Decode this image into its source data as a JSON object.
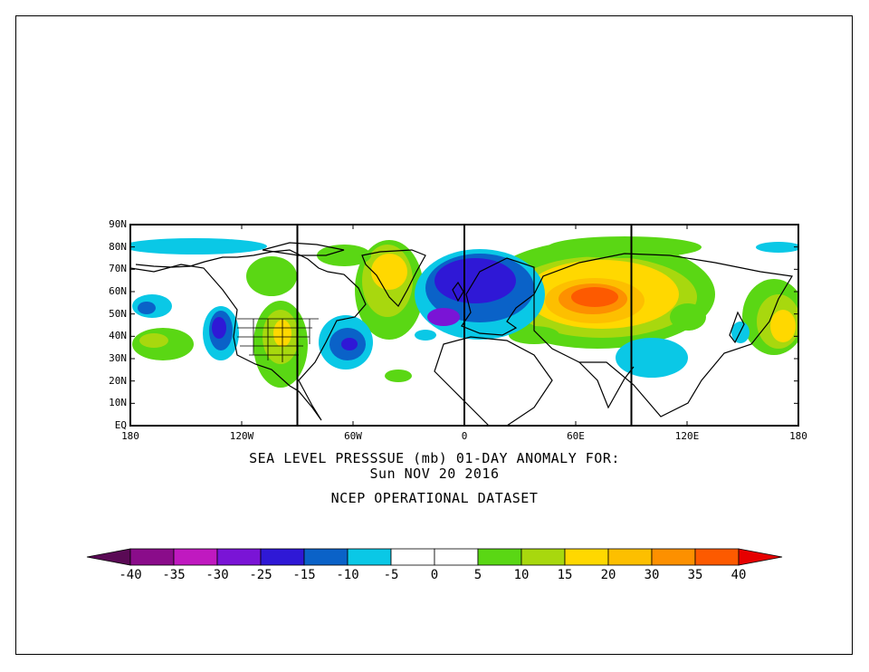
{
  "title": {
    "line1": "SEA LEVEL PRESSSUE (mb)   01-DAY ANOMALY FOR:",
    "line2": "Sun NOV 20 2016",
    "line3": "NCEP OPERATIONAL DATASET"
  },
  "map": {
    "projection": "cylindrical equidistant",
    "lon_range": [
      -180,
      180
    ],
    "lat_range": [
      0,
      90
    ],
    "lon_ticks": [
      "180",
      "120W",
      "60W",
      "0",
      "60E",
      "120E",
      "180"
    ],
    "lat_ticks": [
      "90N",
      "80N",
      "70N",
      "60N",
      "50N",
      "40N",
      "30N",
      "20N",
      "10N",
      "EQ"
    ],
    "meridian_lines_deg": [
      -90,
      0,
      90
    ]
  },
  "colorbar": {
    "labels": [
      "-40",
      "-35",
      "-30",
      "-25",
      "-15",
      "-10",
      "-5",
      "0",
      "5",
      "10",
      "15",
      "20",
      "30",
      "35",
      "40"
    ],
    "colors": [
      "#5a0a55",
      "#8a0c8a",
      "#c019c0",
      "#7a14d6",
      "#2f18d6",
      "#0a62c8",
      "#0ac8e6",
      "#ffffff",
      "#ffffff",
      "#5ad714",
      "#a8d80e",
      "#ffd800",
      "#fdbf00",
      "#fd9000",
      "#fd5a00",
      "#e60000"
    ]
  },
  "chart_data": {
    "type": "heatmap",
    "variable": "SEA LEVEL PRESSSUE (mb) 01-DAY ANOMALY",
    "date": "Sun NOV 20 2016",
    "anomaly_centers": [
      {
        "lon": 70,
        "lat": 57,
        "value": 35
      },
      {
        "lon": 75,
        "lat": 58,
        "value": 30
      },
      {
        "lon": -45,
        "lat": 70,
        "value": 20
      },
      {
        "lon": 100,
        "lat": 70,
        "value": 15
      },
      {
        "lon": 165,
        "lat": 45,
        "value": 15
      },
      {
        "lon": -110,
        "lat": 42,
        "value": 15
      },
      {
        "lon": -170,
        "lat": 40,
        "value": 10
      },
      {
        "lon": -10,
        "lat": 50,
        "value": -30
      },
      {
        "lon": 10,
        "lat": 65,
        "value": -25
      },
      {
        "lon": -125,
        "lat": 45,
        "value": -25
      },
      {
        "lon": -60,
        "lat": 38,
        "value": -20
      },
      {
        "lon": -155,
        "lat": 52,
        "value": -15
      },
      {
        "lon": 100,
        "lat": 35,
        "value": -10
      },
      {
        "lon": -170,
        "lat": 80,
        "value": -5
      },
      {
        "lon": 160,
        "lat": 80,
        "value": -5
      }
    ]
  }
}
